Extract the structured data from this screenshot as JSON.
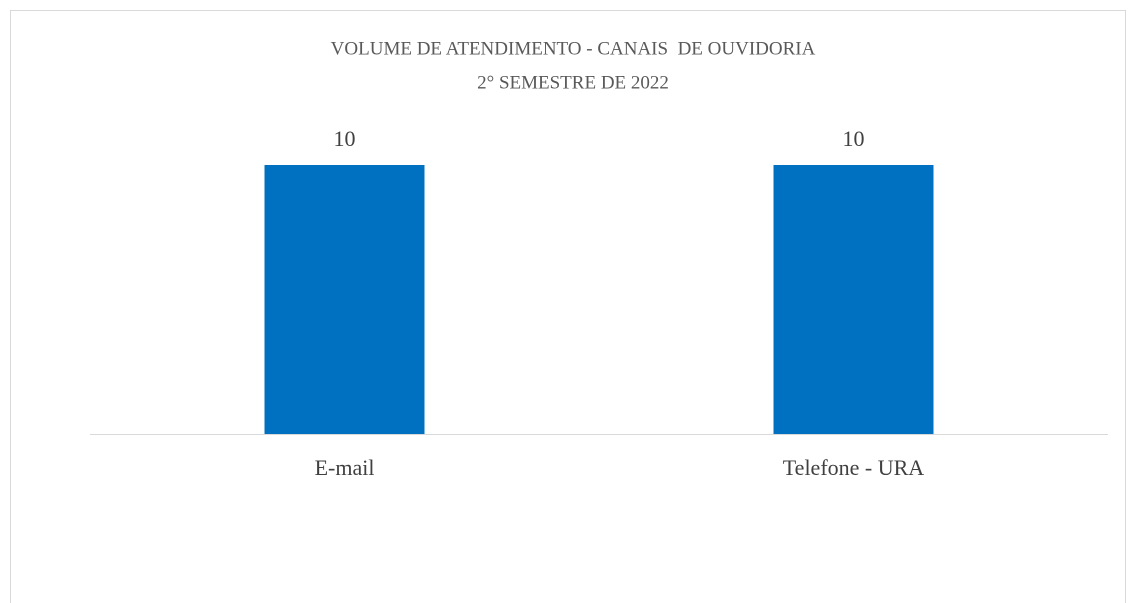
{
  "chart_data": {
    "type": "bar",
    "title": "VOLUME DE ATENDIMENTO - CANAIS  DE OUVIDORIA",
    "subtitle": "2° SEMESTRE DE 2022",
    "categories": [
      "E-mail",
      "Telefone - URA"
    ],
    "values": [
      10,
      10
    ],
    "color": "#0070c0"
  }
}
